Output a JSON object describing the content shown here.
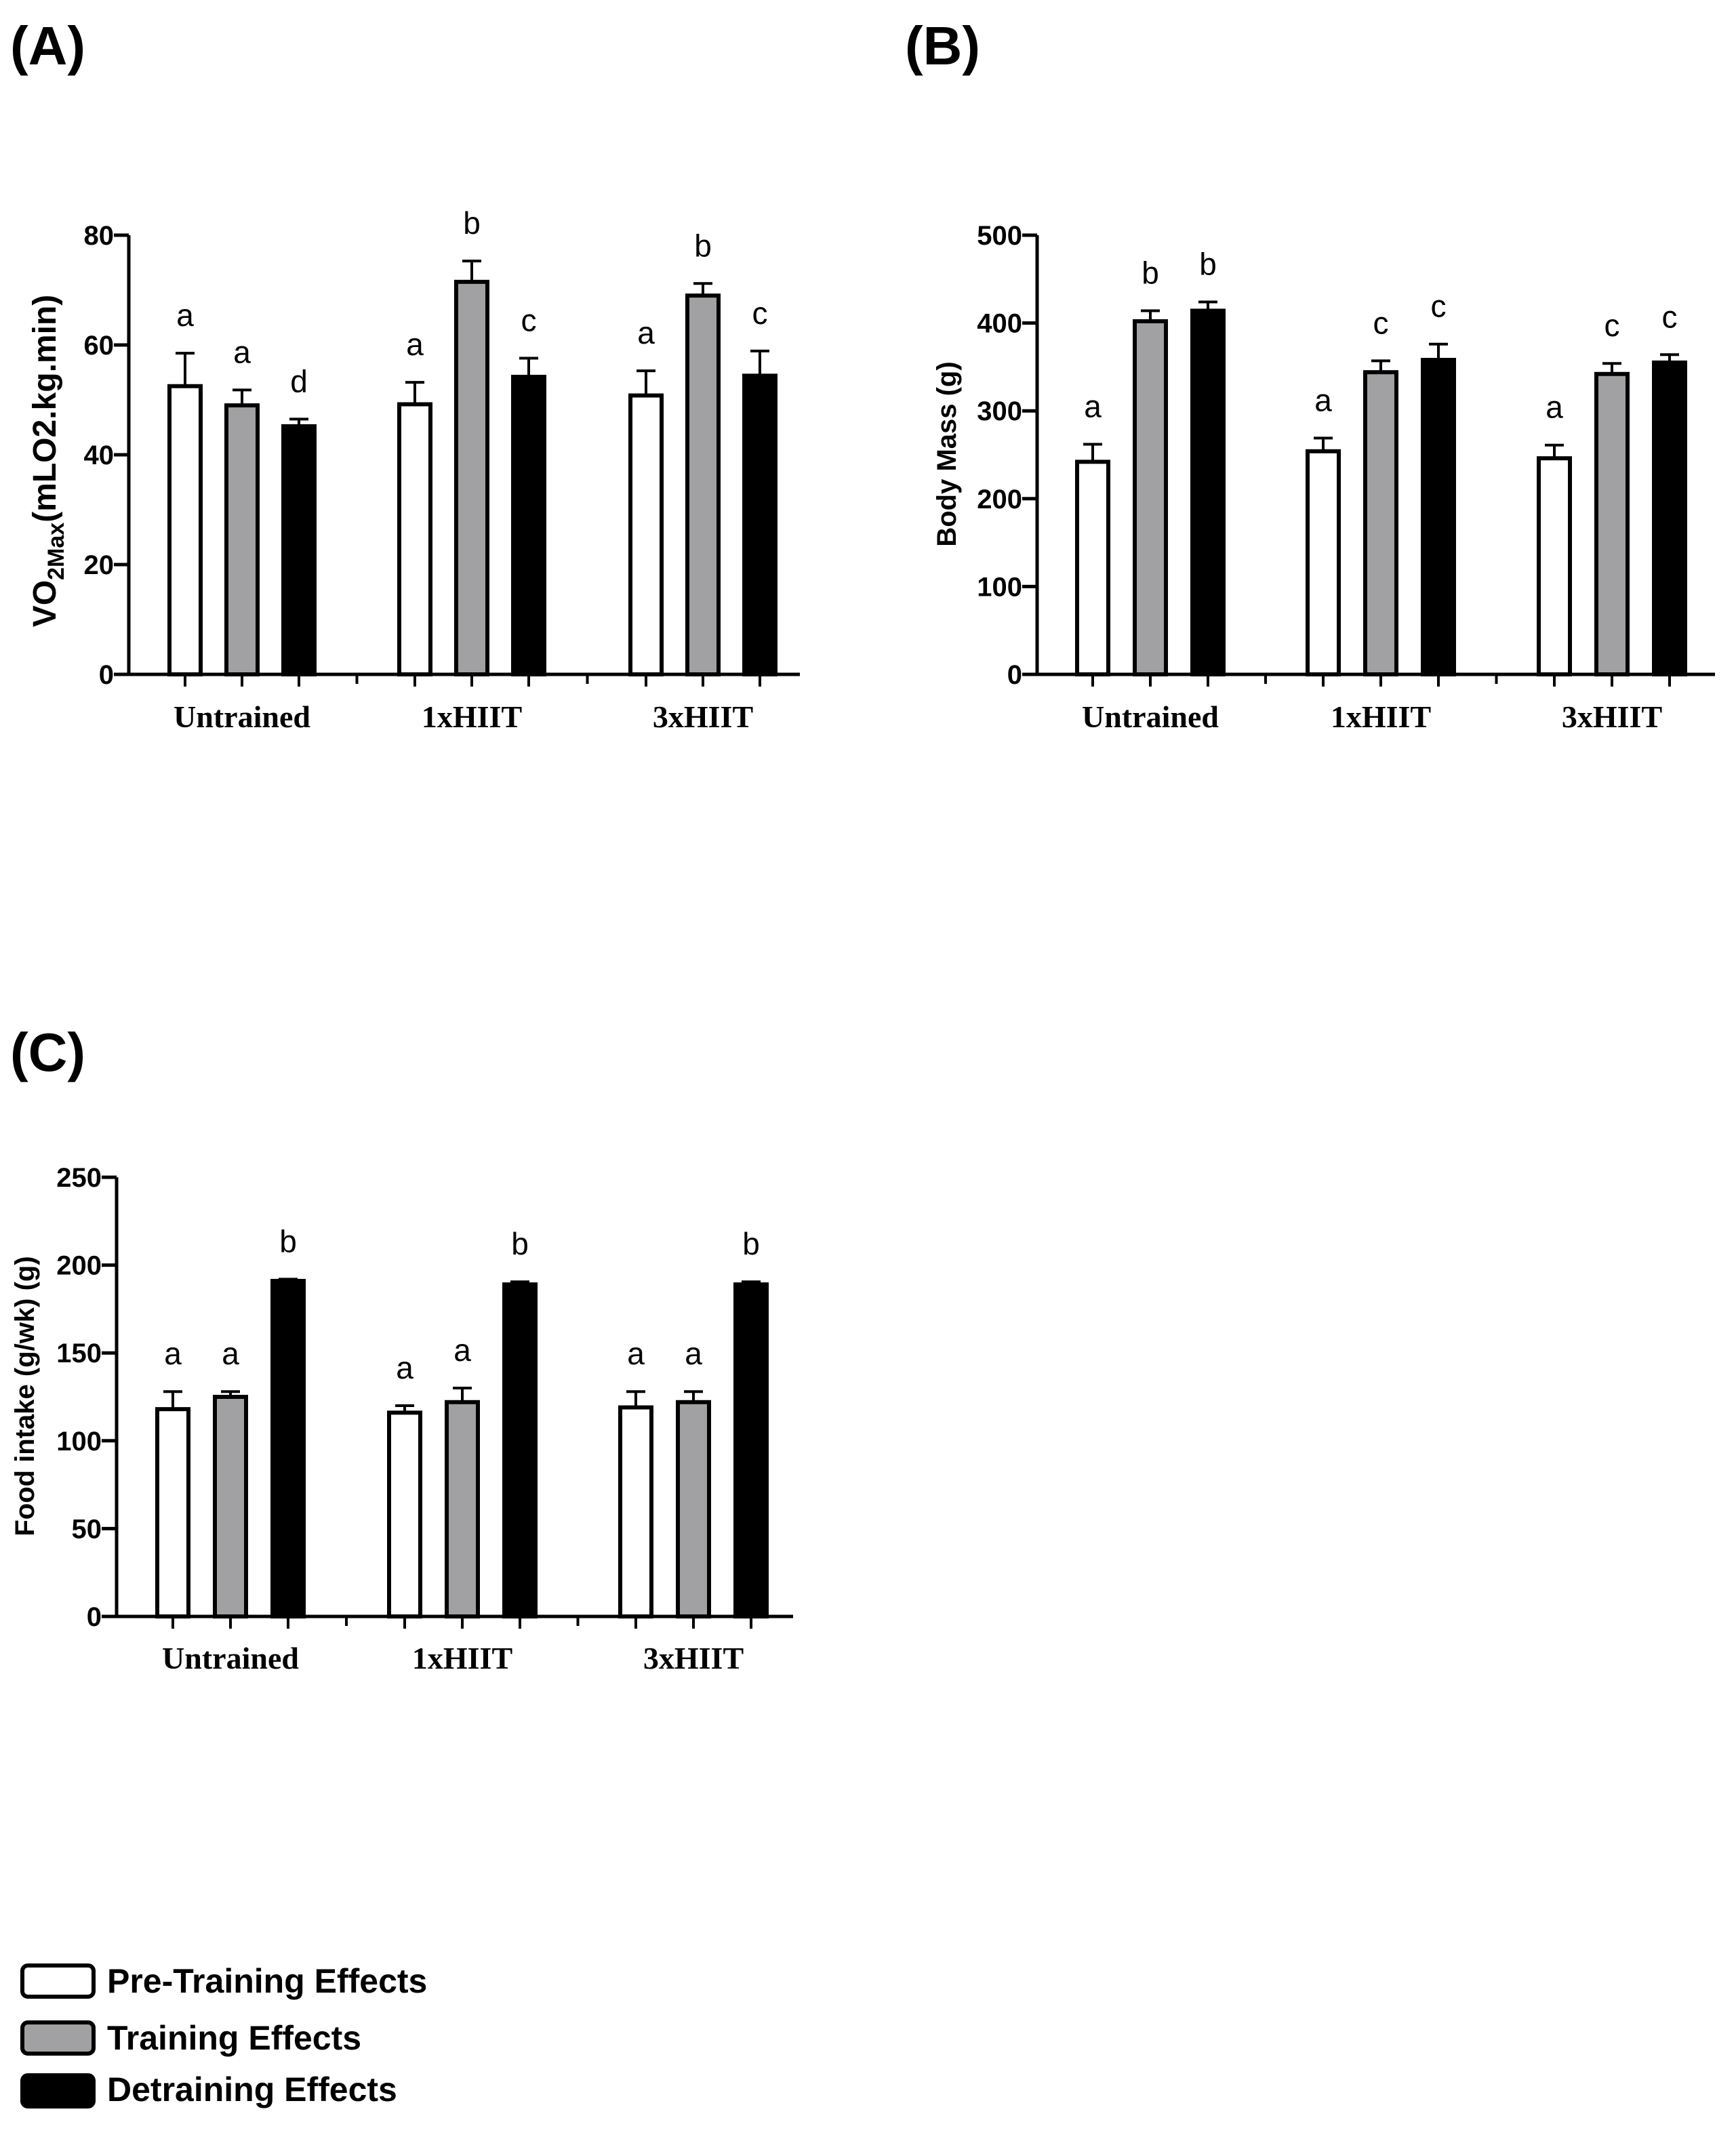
{
  "legend": {
    "items": [
      {
        "label": "Pre-Training Effects",
        "color": "#ffffff"
      },
      {
        "label": "Training Effects",
        "color": "#a1a1a3"
      },
      {
        "label": "Detraining Effects",
        "color": "#000000"
      }
    ]
  },
  "chart_data": [
    {
      "type": "bar",
      "panel": "(A)",
      "title": "",
      "xlabel": "",
      "ylabel_main": "VO",
      "ylabel_sub": "2Max",
      "ylabel_rest": "(mLO2.kg.min)",
      "ylim": [
        0,
        80
      ],
      "yticks": [
        0,
        20,
        40,
        60,
        80
      ],
      "categories": [
        "Untrained",
        "1xHIIT",
        "3xHIIT"
      ],
      "series": [
        {
          "name": "Pre-Training Effects",
          "values": [
            52.5,
            49.2,
            50.8
          ],
          "errors": [
            6,
            4,
            4.5
          ],
          "letters": [
            "a",
            "a",
            "a"
          ]
        },
        {
          "name": "Training Effects",
          "values": [
            49,
            71.5,
            69
          ],
          "errors": [
            2.8,
            3.8,
            2.2
          ],
          "letters": [
            "a",
            "b",
            "b"
          ]
        },
        {
          "name": "Detraining Effects",
          "values": [
            45.2,
            54.2,
            54.4
          ],
          "errors": [
            1.3,
            3.4,
            4.5
          ],
          "letters": [
            "d",
            "c",
            "c"
          ]
        }
      ]
    },
    {
      "type": "bar",
      "panel": "(B)",
      "title": "",
      "xlabel": "",
      "ylabel": "Body Mass (g)",
      "ylim": [
        0,
        500
      ],
      "yticks": [
        0,
        100,
        200,
        300,
        400,
        500
      ],
      "categories": [
        "Untrained",
        "1xHIIT",
        "3xHIIT"
      ],
      "series": [
        {
          "name": "Pre-Training Effects",
          "values": [
            242,
            254,
            246
          ],
          "errors": [
            20,
            15,
            15
          ],
          "letters": [
            "a",
            "a",
            "a"
          ]
        },
        {
          "name": "Training Effects",
          "values": [
            402,
            344,
            342
          ],
          "errors": [
            12,
            13,
            12
          ],
          "letters": [
            "b",
            "c",
            "c"
          ]
        },
        {
          "name": "Detraining Effects",
          "values": [
            414,
            358,
            355
          ],
          "errors": [
            10,
            18,
            9
          ],
          "letters": [
            "b",
            "c",
            "c"
          ]
        }
      ]
    },
    {
      "type": "bar",
      "panel": "(C)",
      "title": "",
      "xlabel": "",
      "ylabel": "Food intake (g/wk) (g)",
      "ylim": [
        0,
        250
      ],
      "yticks": [
        0,
        50,
        100,
        150,
        200,
        250
      ],
      "categories": [
        "Untrained",
        "1xHIIT",
        "3xHIIT"
      ],
      "series": [
        {
          "name": "Pre-Training Effects",
          "values": [
            118,
            116,
            119
          ],
          "errors": [
            10,
            4,
            9
          ],
          "letters": [
            "a",
            "a",
            "a"
          ]
        },
        {
          "name": "Training Effects",
          "values": [
            125,
            122,
            122
          ],
          "errors": [
            3,
            8,
            6
          ],
          "letters": [
            "a",
            "a",
            "a"
          ]
        },
        {
          "name": "Detraining Effects",
          "values": [
            191,
            189,
            189
          ],
          "errors": [
            1,
            1.5,
            1.5
          ],
          "letters": [
            "b",
            "b",
            "b"
          ]
        }
      ]
    }
  ]
}
